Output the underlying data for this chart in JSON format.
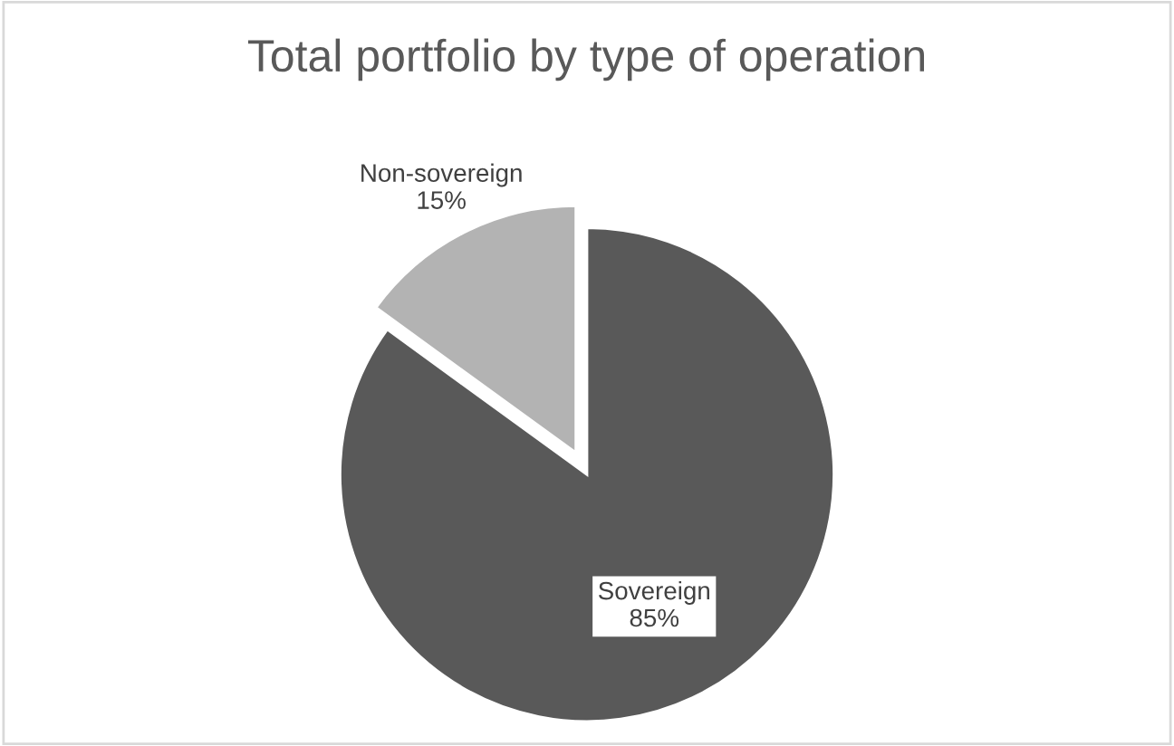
{
  "chart_data": {
    "type": "pie",
    "title": "Total portfolio by type of operation",
    "categories": [
      "Non-sovereign",
      "Sovereign"
    ],
    "values": [
      15,
      85
    ],
    "value_labels": [
      "15%",
      "85%"
    ],
    "colors": [
      "#b3b3b3",
      "#595959"
    ]
  }
}
